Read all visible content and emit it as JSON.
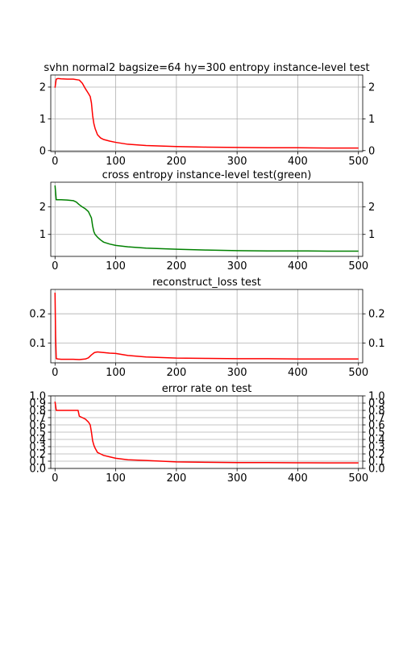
{
  "chart_data": [
    {
      "type": "line",
      "title": "svhn normal2 bagsize=64 hy=300 entropy instance-level test",
      "xlim": [
        -7,
        507
      ],
      "ylim": [
        -0.03,
        2.38
      ],
      "xticks": [
        0,
        100,
        200,
        300,
        400,
        500
      ],
      "yticks": [
        0,
        1,
        2
      ],
      "grid": true,
      "series": [
        {
          "color": "#ff0000",
          "x": [
            0,
            2,
            5,
            10,
            20,
            30,
            40,
            45,
            50,
            55,
            58,
            60,
            62,
            64,
            66,
            70,
            75,
            80,
            90,
            100,
            120,
            150,
            200,
            250,
            300,
            350,
            400,
            450,
            500
          ],
          "y": [
            1.98,
            2.25,
            2.27,
            2.26,
            2.25,
            2.25,
            2.22,
            2.12,
            1.95,
            1.8,
            1.7,
            1.5,
            1.1,
            0.85,
            0.7,
            0.5,
            0.4,
            0.35,
            0.3,
            0.26,
            0.2,
            0.16,
            0.13,
            0.11,
            0.1,
            0.09,
            0.09,
            0.08,
            0.08
          ]
        }
      ]
    },
    {
      "type": "line",
      "title": "cross entropy instance-level test(green)",
      "xlim": [
        -7,
        507
      ],
      "ylim": [
        0.2,
        2.9
      ],
      "xticks": [
        0,
        100,
        200,
        300,
        400,
        500
      ],
      "yticks": [
        1,
        2
      ],
      "grid": true,
      "series": [
        {
          "color": "#008000",
          "x": [
            0,
            2,
            5,
            10,
            20,
            30,
            35,
            40,
            45,
            50,
            55,
            60,
            62,
            64,
            66,
            70,
            75,
            80,
            90,
            100,
            120,
            150,
            200,
            250,
            300,
            350,
            400,
            450,
            500
          ],
          "y": [
            2.78,
            2.26,
            2.26,
            2.26,
            2.25,
            2.23,
            2.18,
            2.08,
            2.0,
            1.93,
            1.83,
            1.6,
            1.3,
            1.1,
            1.0,
            0.9,
            0.8,
            0.72,
            0.65,
            0.6,
            0.55,
            0.5,
            0.46,
            0.43,
            0.41,
            0.4,
            0.4,
            0.39,
            0.39
          ]
        }
      ]
    },
    {
      "type": "line",
      "title": "reconstruct_loss test",
      "xlim": [
        -7,
        507
      ],
      "ylim": [
        0.033,
        0.283
      ],
      "xticks": [
        0,
        100,
        200,
        300,
        400,
        500
      ],
      "yticks": [
        0.1,
        0.2
      ],
      "grid": true,
      "series": [
        {
          "color": "#ff0000",
          "x": [
            0,
            1,
            2,
            5,
            10,
            20,
            30,
            40,
            50,
            55,
            60,
            65,
            70,
            80,
            90,
            100,
            120,
            150,
            200,
            250,
            300,
            350,
            400,
            450,
            500
          ],
          "y": [
            0.272,
            0.12,
            0.047,
            0.046,
            0.045,
            0.045,
            0.045,
            0.044,
            0.046,
            0.05,
            0.06,
            0.068,
            0.07,
            0.068,
            0.066,
            0.065,
            0.058,
            0.053,
            0.049,
            0.048,
            0.047,
            0.047,
            0.046,
            0.046,
            0.046
          ]
        }
      ]
    },
    {
      "type": "line",
      "title": "error rate on test",
      "xlim": [
        -7,
        507
      ],
      "ylim": [
        0.0,
        1.0
      ],
      "xticks": [
        0,
        100,
        200,
        300,
        400,
        500
      ],
      "yticks": [
        0.0,
        0.1,
        0.2,
        0.3,
        0.4,
        0.5,
        0.6,
        0.7,
        0.8,
        0.9,
        1.0
      ],
      "ytick_labels": [
        "0.0",
        "0.1",
        "0.2",
        "0.3",
        "0.4",
        "0.5",
        "0.6",
        "0.7",
        "0.8",
        "0.9",
        "1.0"
      ],
      "grid": true,
      "series": [
        {
          "color": "#ff0000",
          "x": [
            0,
            2,
            5,
            10,
            20,
            30,
            38,
            40,
            45,
            50,
            55,
            58,
            60,
            62,
            64,
            66,
            70,
            75,
            80,
            90,
            100,
            120,
            150,
            200,
            250,
            300,
            350,
            400,
            450,
            500
          ],
          "y": [
            0.92,
            0.8,
            0.8,
            0.8,
            0.8,
            0.8,
            0.8,
            0.72,
            0.7,
            0.68,
            0.64,
            0.6,
            0.5,
            0.38,
            0.32,
            0.28,
            0.22,
            0.2,
            0.18,
            0.16,
            0.14,
            0.12,
            0.11,
            0.09,
            0.085,
            0.08,
            0.08,
            0.078,
            0.077,
            0.076
          ]
        }
      ]
    }
  ]
}
